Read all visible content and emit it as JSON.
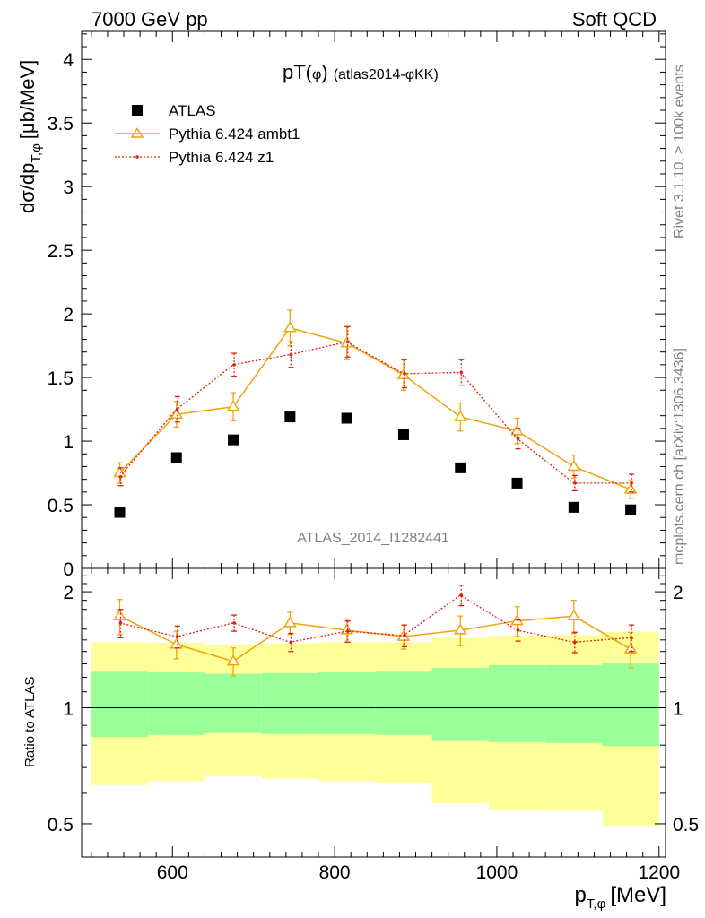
{
  "header": {
    "left": "7000 GeV pp",
    "right": "Soft QCD"
  },
  "side_labels": {
    "rivet": "Rivet 3.1.10, ≥ 100k events",
    "mcplots": "mcplots.cern.ch [arXiv:1306.3436]"
  },
  "colors": {
    "data": "#000000",
    "ambt1": "#f0a30a",
    "z1": "#e02010",
    "band_inner": "#99ff99",
    "band_outer": "#ffff99",
    "watermark": "#808080"
  },
  "chart_data": [
    {
      "panel": "main",
      "type": "scatter",
      "title": "pT(φ) (atlas2014-φKK)",
      "title_main": "pT(",
      "title_phi": "φ",
      "title_close": ")",
      "title_suffix": "(atlas2014-φKK)",
      "ylabel": "dσ/dp",
      "ylabel_sub": "T,φ",
      "ylabel_unit": "[μb/MeV]",
      "watermark": "ATLAS_2014_I1282441",
      "xlim": [
        488,
        1208
      ],
      "ylim": [
        0,
        4.22
      ],
      "yticks": [
        0,
        0.5,
        1,
        1.5,
        2,
        2.5,
        3,
        3.5,
        4
      ],
      "ytick_labels": [
        "0",
        "0.5",
        "1",
        "1.5",
        "2",
        "2.5",
        "3",
        "3.5",
        "4"
      ],
      "legend_position": "top-left",
      "x": [
        535,
        605,
        675,
        745,
        815,
        885,
        955,
        1025,
        1095,
        1165
      ],
      "series": [
        {
          "key": "data",
          "name": "ATLAS",
          "marker": "square",
          "values": [
            0.44,
            0.87,
            1.01,
            1.19,
            1.18,
            1.05,
            0.79,
            0.67,
            0.48,
            0.46
          ],
          "errors": [
            0.01,
            0.02,
            0.02,
            0.02,
            0.02,
            0.02,
            0.02,
            0.02,
            0.01,
            0.01
          ]
        },
        {
          "key": "ambt1",
          "name": "Pythia 6.424 ambt1",
          "marker": "triangle",
          "values": [
            0.75,
            1.21,
            1.27,
            1.89,
            1.77,
            1.52,
            1.19,
            1.08,
            0.8,
            0.62
          ],
          "errors": [
            0.08,
            0.1,
            0.11,
            0.14,
            0.13,
            0.12,
            0.11,
            0.1,
            0.09,
            0.07
          ]
        },
        {
          "key": "z1",
          "name": "Pythia 6.424 z1",
          "marker": "dot",
          "values": [
            0.72,
            1.25,
            1.6,
            1.68,
            1.78,
            1.53,
            1.54,
            1.02,
            0.67,
            0.67
          ],
          "errors": [
            0.07,
            0.1,
            0.09,
            0.1,
            0.12,
            0.11,
            0.1,
            0.08,
            0.06,
            0.07
          ]
        }
      ]
    },
    {
      "panel": "ratio",
      "type": "scatter",
      "ylabel": "Ratio to ATLAS",
      "xlabel": "p",
      "xlabel_sub": "T,φ",
      "xlabel_unit": "[MeV]",
      "xlim": [
        488,
        1208
      ],
      "ylim": [
        0.41,
        2.3
      ],
      "yticks": [
        0.5,
        1,
        2
      ],
      "ytick_labels": [
        "0.5",
        "1",
        "2"
      ],
      "xticks": [
        600,
        800,
        1000,
        1200
      ],
      "xtick_labels": [
        "600",
        "800",
        "1000",
        "1200"
      ],
      "x": [
        535,
        605,
        675,
        745,
        815,
        885,
        955,
        1025,
        1095,
        1165
      ],
      "bands": {
        "bin_edges": [
          500,
          570,
          640,
          710,
          780,
          850,
          920,
          990,
          1060,
          1130,
          1200
        ],
        "inner_low": [
          0.84,
          0.85,
          0.86,
          0.855,
          0.855,
          0.85,
          0.82,
          0.815,
          0.81,
          0.795
        ],
        "inner_high": [
          1.24,
          1.235,
          1.225,
          1.23,
          1.235,
          1.24,
          1.27,
          1.29,
          1.29,
          1.31
        ],
        "outer_low": [
          0.63,
          0.645,
          0.665,
          0.655,
          0.645,
          0.64,
          0.565,
          0.545,
          0.54,
          0.495
        ],
        "outer_high": [
          1.48,
          1.475,
          1.46,
          1.47,
          1.48,
          1.48,
          1.52,
          1.54,
          1.545,
          1.575
        ]
      },
      "series": [
        {
          "key": "ambt1",
          "name": "Pythia 6.424 ambt1",
          "values": [
            1.73,
            1.46,
            1.32,
            1.66,
            1.59,
            1.53,
            1.59,
            1.68,
            1.73,
            1.42
          ],
          "errors": [
            0.18,
            0.12,
            0.11,
            0.11,
            0.11,
            0.11,
            0.14,
            0.15,
            0.17,
            0.15
          ]
        },
        {
          "key": "z1",
          "name": "Pythia 6.424 z1",
          "values": [
            1.66,
            1.53,
            1.66,
            1.48,
            1.58,
            1.54,
            1.96,
            1.59,
            1.48,
            1.52
          ],
          "errors": [
            0.14,
            0.1,
            0.08,
            0.08,
            0.1,
            0.1,
            0.12,
            0.1,
            0.09,
            0.12
          ]
        }
      ]
    }
  ]
}
